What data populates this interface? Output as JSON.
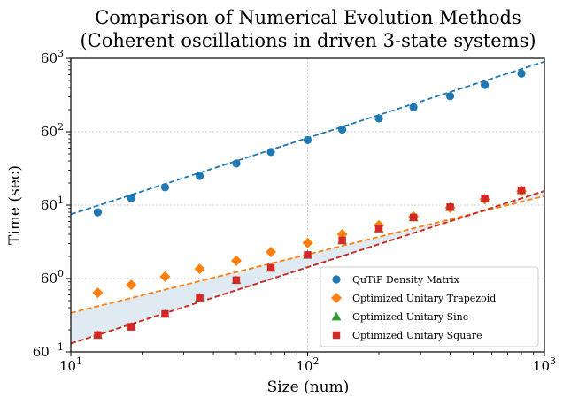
{
  "chart_data": {
    "type": "scatter",
    "title": [
      "Comparison of Numerical Evolution Methods",
      "(Coherent oscillations in driven 3-state systems)"
    ],
    "xlabel": "Size (num)",
    "ylabel": "Time (sec)",
    "xscale": "log",
    "yscale": "log",
    "xlim": [
      10,
      1000
    ],
    "ylim": [
      0.1,
      1000
    ],
    "x_ticks": [
      {
        "value": 10,
        "base": "10",
        "exp": "1"
      },
      {
        "value": 100,
        "base": "10",
        "exp": "2"
      },
      {
        "value": 1000,
        "base": "10",
        "exp": "3"
      }
    ],
    "y_ticks": [
      {
        "value": 0.1,
        "base": "60",
        "exp": "−1"
      },
      {
        "value": 1,
        "base": "60",
        "exp": "0"
      },
      {
        "value": 10,
        "base": "60",
        "exp": "1"
      },
      {
        "value": 100,
        "base": "60",
        "exp": "2"
      },
      {
        "value": 1000,
        "base": "60",
        "exp": "3"
      }
    ],
    "grid": true,
    "legend_position": "lower-right",
    "shaded_region": {
      "between": [
        "Optimized Unitary Trapezoid",
        "Optimized Unitary Square"
      ],
      "color": "#dde8f2"
    },
    "x": [
      13,
      18,
      25,
      35,
      50,
      70,
      100,
      140,
      200,
      280,
      400,
      560,
      800
    ],
    "series": [
      {
        "name": "QuTiP Density Matrix",
        "color": "#1f77b4",
        "marker": "circle",
        "values": [
          8.0,
          12.5,
          17.5,
          25,
          37,
          53,
          77,
          107,
          152,
          215,
          305,
          435,
          620
        ],
        "fit": [
          7.5,
          1,
          1.04
        ]
      },
      {
        "name": "Optimized Unitary Trapezoid",
        "color": "#ff7f0e",
        "marker": "diamond",
        "values": [
          0.64,
          0.82,
          1.06,
          1.35,
          1.75,
          2.3,
          3.05,
          4.0,
          5.3,
          7.0,
          9.2,
          12.0,
          15.5
        ],
        "fit": [
          0.34,
          1,
          0.796
        ]
      },
      {
        "name": "Optimized Unitary Sine",
        "color": "#2ca02c",
        "marker": "triangle",
        "values": [
          0.17,
          0.22,
          0.33,
          0.55,
          0.95,
          1.4,
          2.1,
          3.3,
          4.8,
          6.8,
          9.4,
          12.4,
          16.0
        ],
        "fit": [
          0.13,
          1,
          1.04
        ]
      },
      {
        "name": "Optimized Unitary Square",
        "color": "#d62728",
        "marker": "square",
        "values": [
          0.17,
          0.22,
          0.33,
          0.55,
          0.95,
          1.4,
          2.1,
          3.3,
          4.8,
          6.8,
          9.4,
          12.4,
          16.0
        ],
        "fit": [
          0.13,
          1,
          1.04
        ]
      }
    ]
  }
}
